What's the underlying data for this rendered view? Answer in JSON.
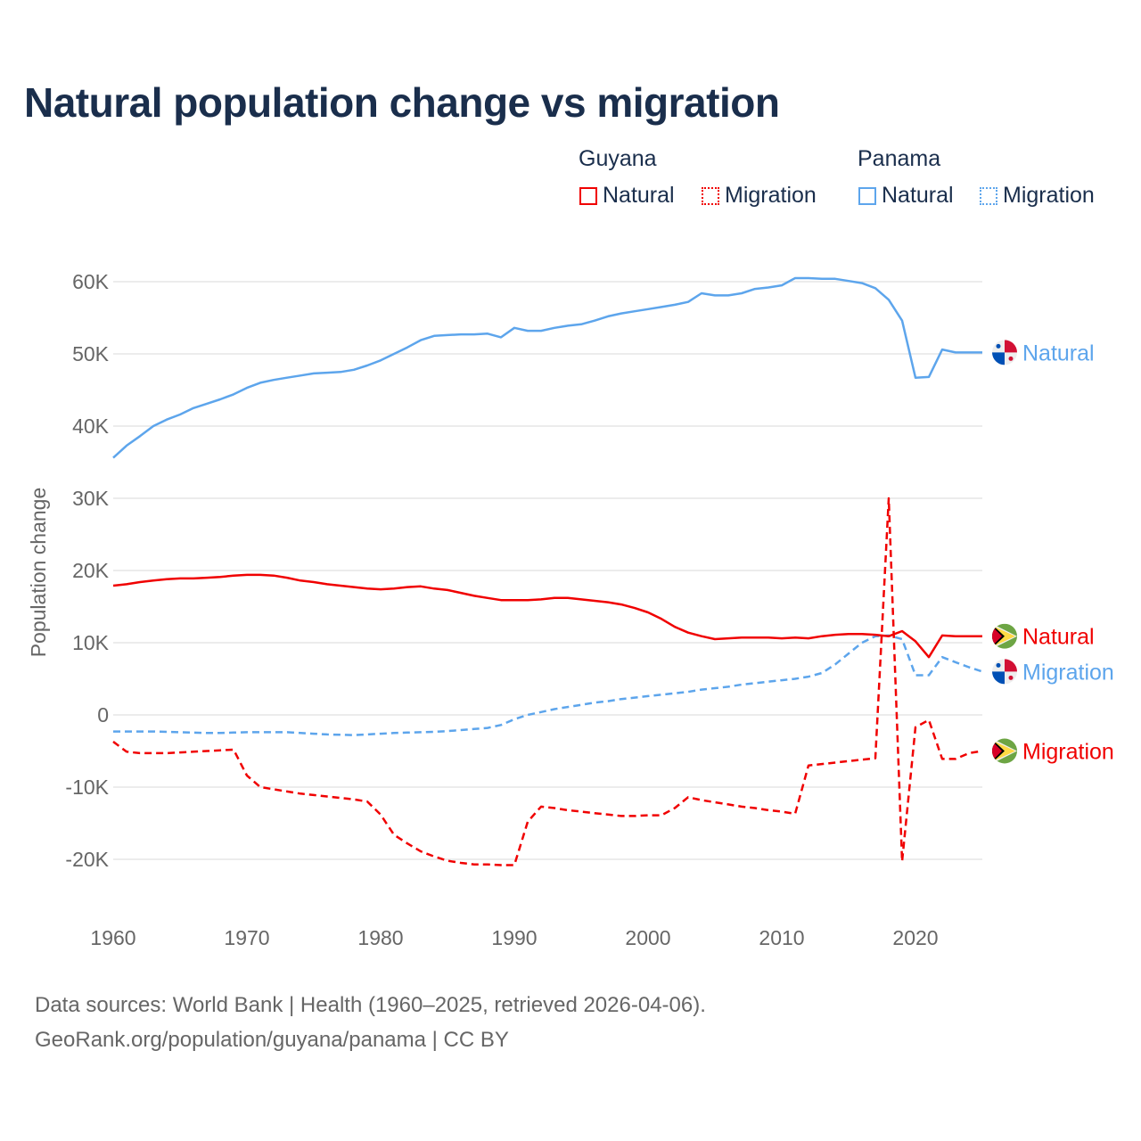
{
  "chart_data": {
    "type": "line",
    "title": "Natural population change vs migration",
    "xlabel": "",
    "ylabel": "Population change",
    "xlim": [
      1960,
      2025
    ],
    "ylim": [
      -25000,
      65000
    ],
    "x_ticks": [
      "1960",
      "1970",
      "1980",
      "1990",
      "2000",
      "2010",
      "2020"
    ],
    "y_ticks": [
      {
        "v": 60000,
        "label": "60K"
      },
      {
        "v": 50000,
        "label": "50K"
      },
      {
        "v": 40000,
        "label": "40K"
      },
      {
        "v": 30000,
        "label": "30K"
      },
      {
        "v": 20000,
        "label": "20K"
      },
      {
        "v": 10000,
        "label": "10K"
      },
      {
        "v": 0,
        "label": "0"
      },
      {
        "v": -10000,
        "label": "-10K"
      },
      {
        "v": -20000,
        "label": "-20K"
      }
    ],
    "grid": true,
    "legend": {
      "placement": "top-right",
      "groups": [
        {
          "country": "Guyana",
          "items": [
            "Natural",
            "Migration"
          ]
        },
        {
          "country": "Panama",
          "items": [
            "Natural",
            "Migration"
          ]
        }
      ]
    },
    "x_start": 1960,
    "series": [
      {
        "name": "Panama Natural",
        "country": "Panama",
        "kind": "Natural",
        "color": "#5da5ec",
        "dashed": false,
        "end_label": "Natural",
        "values": [
          35600,
          37300,
          38600,
          40000,
          40900,
          41600,
          42500,
          43100,
          43700,
          44400,
          45300,
          46000,
          46400,
          46700,
          47000,
          47300,
          47400,
          47500,
          47800,
          48400,
          49100,
          50000,
          50900,
          51900,
          52500,
          52600,
          52700,
          52700,
          52800,
          52300,
          53600,
          53200,
          53200,
          53600,
          53900,
          54100,
          54600,
          55200,
          55600,
          55900,
          56200,
          56500,
          56800,
          57200,
          58400,
          58100,
          58100,
          58400,
          59000,
          59200,
          59500,
          60500,
          60500,
          60400,
          60400,
          60100,
          59800,
          59100,
          57500,
          54600,
          46700,
          46800,
          50600,
          50200,
          50200,
          50200
        ]
      },
      {
        "name": "Panama Migration",
        "country": "Panama",
        "kind": "Migration",
        "color": "#5da5ec",
        "dashed": true,
        "end_label": "Migration",
        "values": [
          -2300,
          -2300,
          -2300,
          -2300,
          -2350,
          -2400,
          -2450,
          -2500,
          -2500,
          -2450,
          -2400,
          -2400,
          -2400,
          -2400,
          -2500,
          -2600,
          -2700,
          -2750,
          -2800,
          -2700,
          -2600,
          -2500,
          -2450,
          -2400,
          -2350,
          -2250,
          -2100,
          -1950,
          -1800,
          -1400,
          -600,
          0,
          400,
          800,
          1100,
          1400,
          1700,
          1900,
          2200,
          2400,
          2600,
          2800,
          3000,
          3200,
          3500,
          3700,
          3900,
          4200,
          4400,
          4600,
          4800,
          5000,
          5300,
          5800,
          7000,
          8500,
          10000,
          10900,
          11000,
          10500,
          5500,
          5500,
          8000,
          7300,
          6600,
          6000
        ]
      },
      {
        "name": "Guyana Natural",
        "country": "Guyana",
        "kind": "Natural",
        "color": "#f00000",
        "dashed": false,
        "end_label": "Natural",
        "values": [
          17900,
          18100,
          18400,
          18600,
          18800,
          18900,
          18900,
          19000,
          19100,
          19300,
          19400,
          19400,
          19300,
          19000,
          18600,
          18400,
          18100,
          17900,
          17700,
          17500,
          17400,
          17500,
          17700,
          17800,
          17500,
          17300,
          16900,
          16500,
          16200,
          15900,
          15900,
          15900,
          16000,
          16200,
          16200,
          16000,
          15800,
          15600,
          15300,
          14800,
          14200,
          13300,
          12200,
          11400,
          10900,
          10500,
          10600,
          10700,
          10700,
          10700,
          10600,
          10700,
          10600,
          10900,
          11100,
          11200,
          11200,
          11100,
          10900,
          11600,
          10200,
          8000,
          11000,
          10900,
          10900,
          10900
        ]
      },
      {
        "name": "Guyana Migration",
        "country": "Guyana",
        "kind": "Migration",
        "color": "#f00000",
        "dashed": true,
        "end_label": "Migration",
        "values": [
          -3700,
          -5100,
          -5300,
          -5300,
          -5300,
          -5200,
          -5100,
          -5000,
          -4900,
          -4800,
          -8400,
          -10000,
          -10300,
          -10600,
          -10900,
          -11100,
          -11300,
          -11500,
          -11700,
          -12000,
          -13800,
          -16600,
          -17800,
          -18900,
          -19600,
          -20200,
          -20500,
          -20700,
          -20700,
          -20800,
          -20800,
          -14800,
          -12700,
          -12900,
          -13200,
          -13400,
          -13600,
          -13800,
          -14000,
          -14000,
          -13900,
          -13900,
          -12900,
          -11400,
          -11800,
          -12100,
          -12400,
          -12700,
          -12900,
          -13200,
          -13400,
          -13700,
          -7000,
          -6800,
          -6600,
          -6400,
          -6200,
          -6000,
          30000,
          -20300,
          -1700,
          -700,
          -6100,
          -6100,
          -5300,
          -5000
        ]
      }
    ]
  },
  "source": {
    "line1": "Data sources: World Bank | Health (1960–2025, retrieved 2026-04-06).",
    "line2": "GeoRank.org/population/guyana/panama | CC BY"
  }
}
